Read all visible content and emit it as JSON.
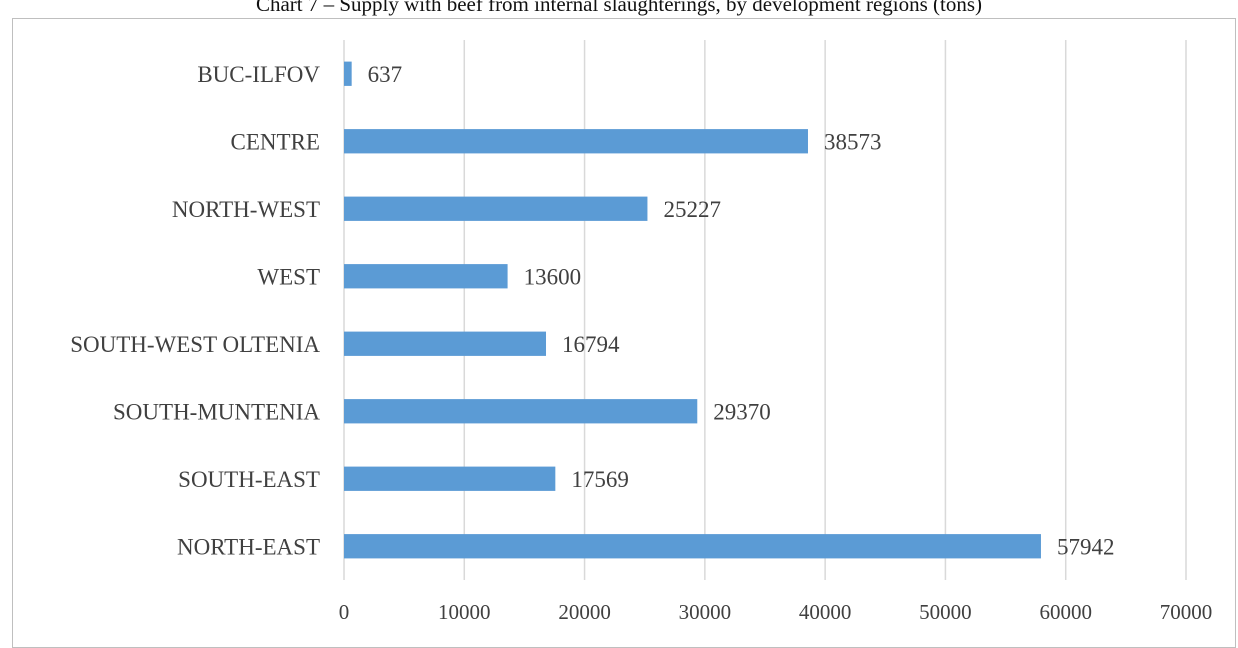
{
  "chart_data": {
    "type": "bar",
    "orientation": "horizontal",
    "title": "Chart 7 – Supply with beef from internal slaughterings, by development regions (tons)",
    "categories": [
      "NORTH-EAST",
      "SOUTH-EAST",
      "SOUTH-MUNTENIA",
      "SOUTH-WEST OLTENIA",
      "WEST",
      "NORTH-WEST",
      "CENTRE",
      "BUC-ILFOV"
    ],
    "series": [
      {
        "values": [
          57942,
          17569,
          29370,
          16794,
          13600,
          25227,
          38573,
          637
        ],
        "color": "#5b9bd5"
      }
    ],
    "xlim": [
      0,
      70000
    ],
    "xticks": [
      0,
      10000,
      20000,
      30000,
      40000,
      50000,
      60000,
      70000
    ],
    "grid": "vertical",
    "data_labels": true,
    "xlabel": "",
    "ylabel": ""
  }
}
